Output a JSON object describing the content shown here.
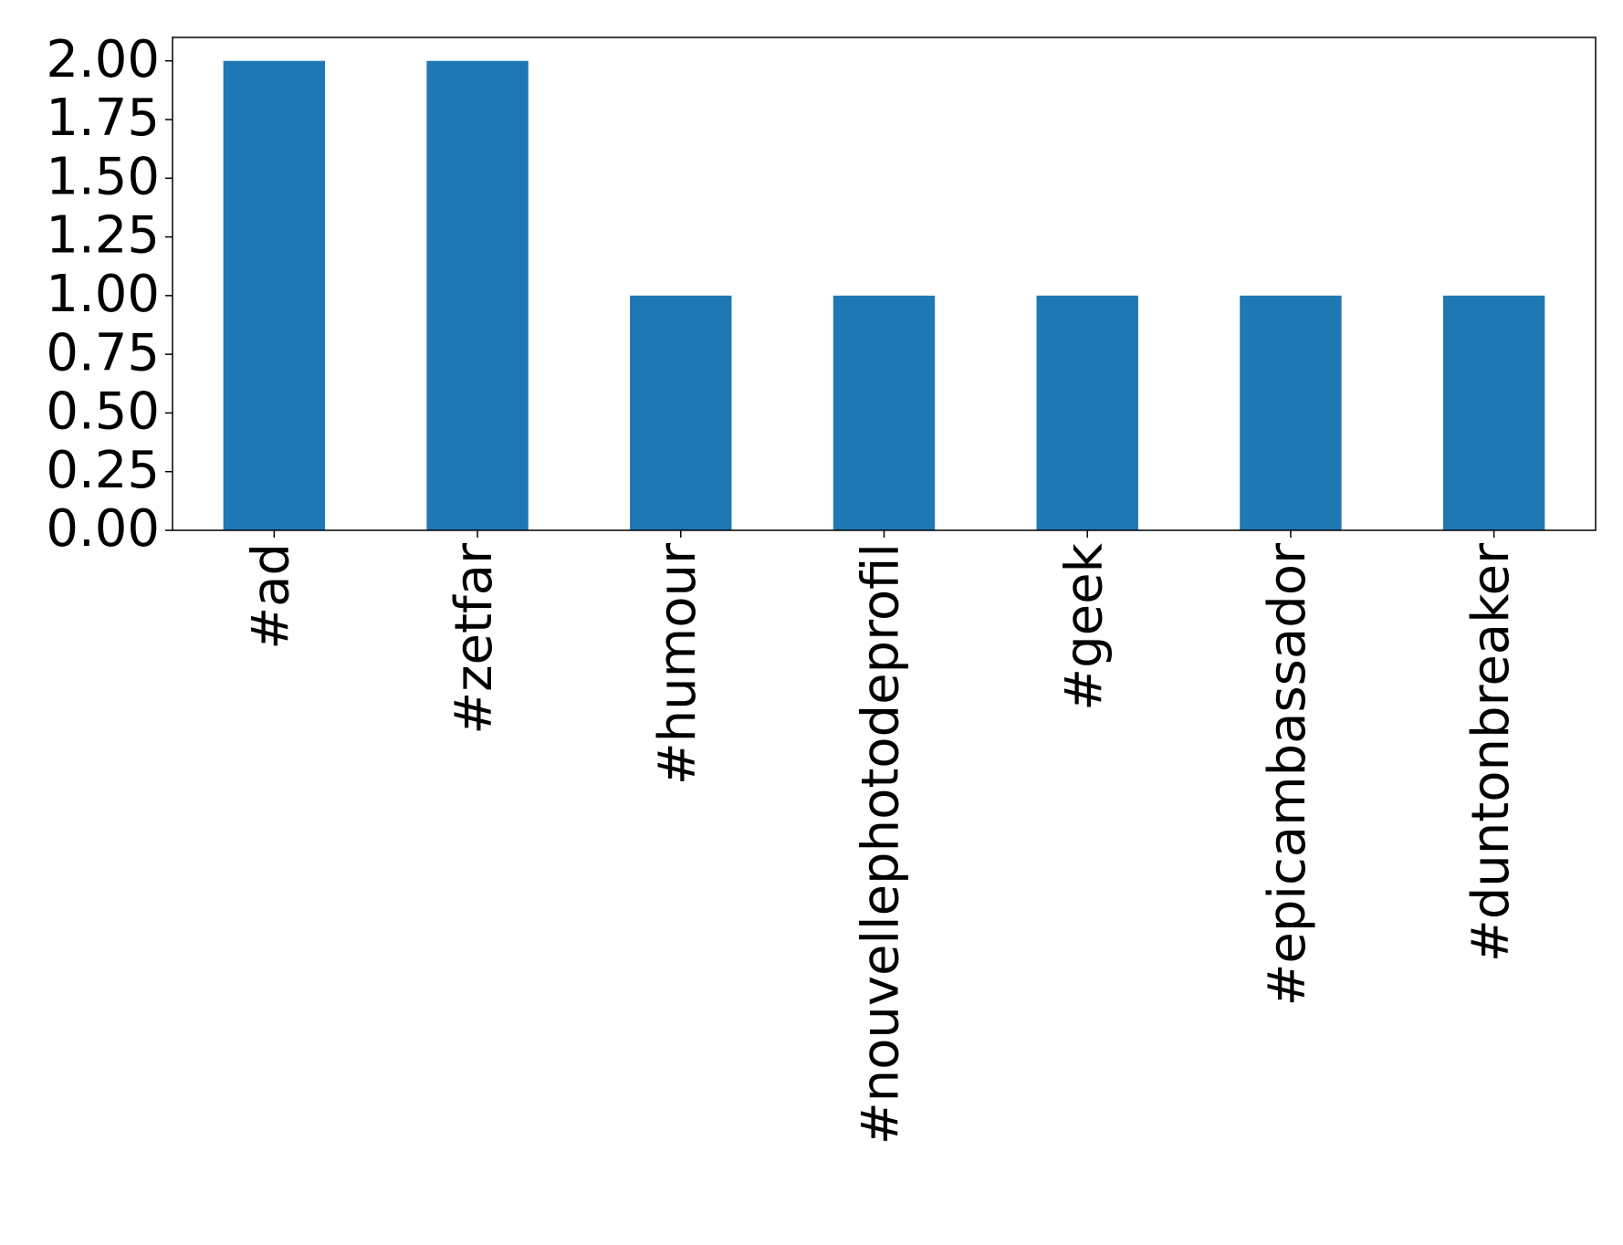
{
  "chart_data": {
    "type": "bar",
    "categories": [
      "#ad",
      "#zetfar",
      "#humour",
      "#nouvellephotodeprofil",
      "#geek",
      "#epicambassador",
      "#duntonbreaker"
    ],
    "values": [
      2,
      2,
      1,
      1,
      1,
      1,
      1
    ],
    "color": "#1f77b4",
    "ylim": [
      0,
      2.1
    ],
    "yticks": [
      {
        "value": 0,
        "label": "0.00"
      },
      {
        "value": 0.25,
        "label": "0.25"
      },
      {
        "value": 0.5,
        "label": "0.50"
      },
      {
        "value": 0.75,
        "label": "0.75"
      },
      {
        "value": 1,
        "label": "1.00"
      },
      {
        "value": 1.25,
        "label": "1.25"
      },
      {
        "value": 1.5,
        "label": "1.50"
      },
      {
        "value": 1.75,
        "label": "1.75"
      },
      {
        "value": 2,
        "label": "2.00"
      }
    ],
    "grid": false
  }
}
